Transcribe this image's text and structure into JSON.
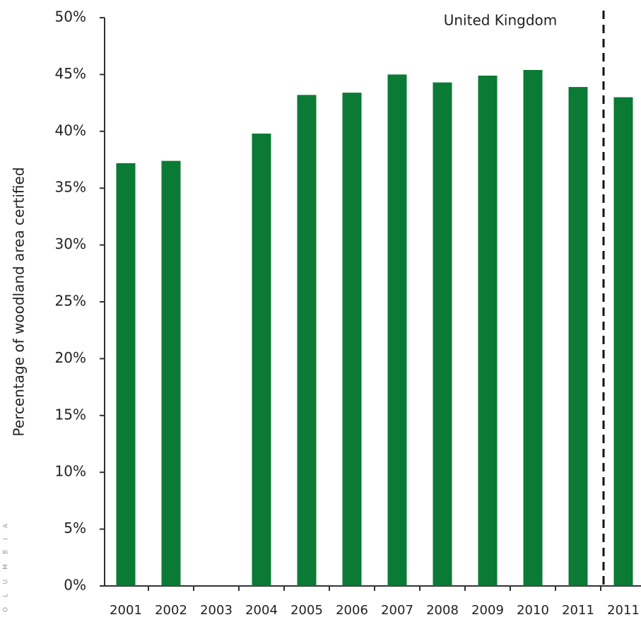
{
  "chart_data": {
    "type": "bar",
    "y_axis_label": "Percentage of woodland area certified",
    "annotation": "United Kingdom",
    "side_text": "OLUMBIA",
    "categories": [
      "2001",
      "2002",
      "2003",
      "2004",
      "2005",
      "2006",
      "2007",
      "2008",
      "2009",
      "2010",
      "2011",
      "2011"
    ],
    "values": [
      37.2,
      37.4,
      null,
      39.8,
      43.2,
      43.4,
      45.0,
      44.3,
      44.9,
      45.4,
      43.9,
      43.0
    ],
    "color": "#0a7a35",
    "ylim": [
      0,
      50
    ],
    "yticks": [
      {
        "value": 0,
        "label": "0%"
      },
      {
        "value": 5,
        "label": "5%"
      },
      {
        "value": 10,
        "label": "10%"
      },
      {
        "value": 15,
        "label": "15%"
      },
      {
        "value": 20,
        "label": "20%"
      },
      {
        "value": 25,
        "label": "25%"
      },
      {
        "value": 30,
        "label": "30%"
      },
      {
        "value": 35,
        "label": "35%"
      },
      {
        "value": 40,
        "label": "40%"
      },
      {
        "value": 45,
        "label": "45%"
      },
      {
        "value": 50,
        "label": "50%"
      }
    ],
    "grid": false
  }
}
